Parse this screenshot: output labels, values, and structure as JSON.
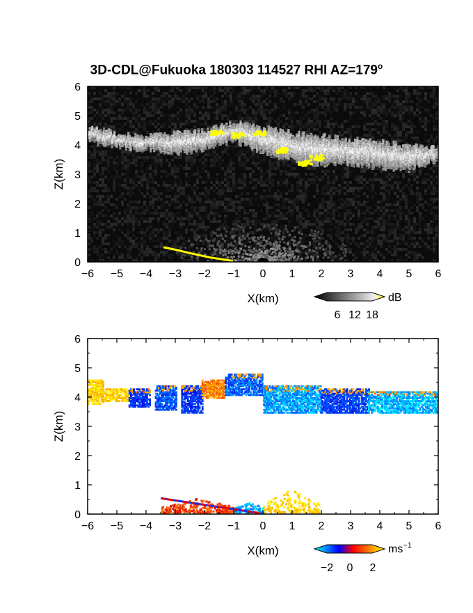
{
  "figure": {
    "title": "3D-CDL@Fukuoka 180303 114527 RHI AZ=179",
    "title_sup": "o"
  },
  "colors": {
    "background": "#ffffff",
    "panel_top_bg": "#0b0b0b",
    "highlight": "#ffff00"
  },
  "chart_data": [
    {
      "type": "heatmap",
      "name": "reflectivity",
      "xlabel": "X(km)",
      "ylabel": "Z(km)",
      "xlim": [
        -6,
        6
      ],
      "ylim": [
        0,
        6
      ],
      "xticks": [
        -6,
        -5,
        -4,
        -3,
        -2,
        -1,
        0,
        1,
        2,
        3,
        4,
        5,
        6
      ],
      "yticks": [
        0,
        1,
        2,
        3,
        4,
        5,
        6
      ],
      "colorbar": {
        "unit": "dB",
        "ticks": [
          "6",
          "12",
          "18"
        ],
        "range": [
          0,
          21
        ],
        "scheme": "grayscale-to-yellow"
      },
      "cloud_top_km": [
        [
          -6,
          4.6
        ],
        [
          -5,
          4.4
        ],
        [
          -4,
          4.3
        ],
        [
          -3,
          4.4
        ],
        [
          -2,
          4.5
        ],
        [
          -1,
          4.8
        ],
        [
          0,
          4.6
        ],
        [
          1,
          4.4
        ],
        [
          2,
          4.3
        ],
        [
          3,
          4.2
        ],
        [
          4,
          4.1
        ],
        [
          5,
          4.0
        ],
        [
          6,
          3.9
        ]
      ],
      "cloud_base_km": [
        [
          -6,
          4.2
        ],
        [
          -5,
          4.0
        ],
        [
          -4,
          3.9
        ],
        [
          -3,
          3.8
        ],
        [
          -2,
          3.9
        ],
        [
          -1,
          4.2
        ],
        [
          0,
          3.8
        ],
        [
          1,
          3.5
        ],
        [
          2,
          3.4
        ],
        [
          3,
          3.4
        ],
        [
          4,
          3.3
        ],
        [
          5,
          3.2
        ],
        [
          6,
          3.6
        ]
      ],
      "high_echo_patches": [
        {
          "x": -1.6,
          "z": 4.45
        },
        {
          "x": -0.9,
          "z": 4.35
        },
        {
          "x": -0.15,
          "z": 4.45
        },
        {
          "x": 0.6,
          "z": 3.85
        },
        {
          "x": 1.4,
          "z": 3.4
        },
        {
          "x": 1.8,
          "z": 3.6
        }
      ],
      "near_ground_echo": {
        "yellow_line": [
          [
            -3.4,
            0.5
          ],
          [
            -3.0,
            0.42
          ],
          [
            -2.5,
            0.3
          ],
          [
            -1.8,
            0.15
          ],
          [
            -1.0,
            0.03
          ]
        ],
        "noise_cone_center_x": 0.0
      }
    },
    {
      "type": "heatmap",
      "name": "doppler_velocity",
      "xlabel": "X(km)",
      "ylabel": "Z(km)",
      "xlim": [
        -6,
        6
      ],
      "ylim": [
        0,
        6
      ],
      "xticks": [
        -6,
        -5,
        -4,
        -3,
        -2,
        -1,
        0,
        1,
        2,
        3,
        4,
        5,
        6
      ],
      "yticks": [
        0,
        1,
        2,
        3,
        4,
        5,
        6
      ],
      "colorbar": {
        "unit": "ms",
        "unit_sup": "−1",
        "ticks": [
          "−2",
          "0",
          "2"
        ],
        "range": [
          -3,
          3
        ],
        "scheme": "cyan-blue-red-yellow"
      },
      "segments": [
        {
          "x0": -6.0,
          "x1": -5.5,
          "v": 2.4,
          "z0": 3.8,
          "z1": 4.6
        },
        {
          "x0": -5.5,
          "x1": -4.6,
          "v": 2.4,
          "z0": 3.9,
          "z1": 4.3
        },
        {
          "x0": -4.6,
          "x1": -3.9,
          "v": -1.0,
          "z0": 3.7,
          "z1": 4.3
        },
        {
          "x0": -3.7,
          "x1": -3.0,
          "v": -1.4,
          "z0": 3.6,
          "z1": 4.4
        },
        {
          "x0": -2.8,
          "x1": -2.1,
          "v": -1.0,
          "z0": 3.5,
          "z1": 4.4
        },
        {
          "x0": -2.1,
          "x1": -1.3,
          "v": 1.4,
          "z0": 4.0,
          "z1": 4.6
        },
        {
          "x0": -1.3,
          "x1": 0.0,
          "v": -1.6,
          "z0": 4.1,
          "z1": 4.8
        },
        {
          "x0": 0.0,
          "x1": 2.0,
          "v": -2.2,
          "z0": 3.5,
          "z1": 4.4
        },
        {
          "x0": 2.0,
          "x1": 3.6,
          "v": -1.2,
          "z0": 3.5,
          "z1": 4.3
        },
        {
          "x0": 3.6,
          "x1": 6.0,
          "v": -2.4,
          "z0": 3.5,
          "z1": 4.2
        }
      ],
      "near_ground": [
        {
          "x0": -3.5,
          "x1": -1.0,
          "v": 0.8,
          "z0": 0.0,
          "z1": 0.5
        },
        {
          "x0": -1.0,
          "x1": 0.0,
          "v": -2.2,
          "z0": 0.0,
          "z1": 0.4
        },
        {
          "x0": 0.0,
          "x1": 1.9,
          "v": 2.4,
          "z0": 0.0,
          "z1": 0.8
        }
      ]
    }
  ]
}
